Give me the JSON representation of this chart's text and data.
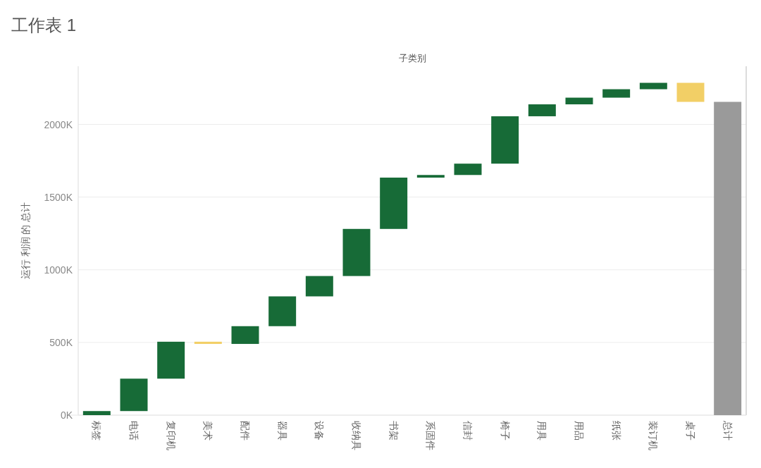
{
  "chart_data": {
    "type": "bar",
    "title": "工作表 1",
    "xlabel": "子类别",
    "ylabel": "运行 利润 的 总计",
    "categories": [
      "标签",
      "电话",
      "复印机",
      "美术",
      "配件",
      "器具",
      "设备",
      "收纳具",
      "书架",
      "系固件",
      "信封",
      "椅子",
      "用具",
      "用品",
      "纸张",
      "装订机",
      "桌子",
      "总计"
    ],
    "base": [
      0,
      28,
      251,
      505,
      490,
      612,
      817,
      957,
      1281,
      1634,
      1652,
      1730,
      2056,
      2138,
      2184,
      2242,
      2286,
      0
    ],
    "values": [
      28,
      223,
      254,
      -15,
      122,
      205,
      140,
      324,
      353,
      18,
      78,
      326,
      82,
      46,
      58,
      44,
      -131,
      2155
    ],
    "colors": [
      "#176b37",
      "#176b37",
      "#176b37",
      "#f2cf66",
      "#176b37",
      "#176b37",
      "#176b37",
      "#176b37",
      "#176b37",
      "#176b37",
      "#176b37",
      "#176b37",
      "#176b37",
      "#176b37",
      "#176b37",
      "#176b37",
      "#f2cf66",
      "#9a9a9a"
    ],
    "ylim": [
      0,
      2400
    ],
    "yticks": [
      {
        "value": 0,
        "label": "0K"
      },
      {
        "value": 500,
        "label": "500K"
      },
      {
        "value": 1000,
        "label": "1000K"
      },
      {
        "value": 1500,
        "label": "1500K"
      },
      {
        "value": 2000,
        "label": "2000K"
      }
    ],
    "grid": "y"
  }
}
